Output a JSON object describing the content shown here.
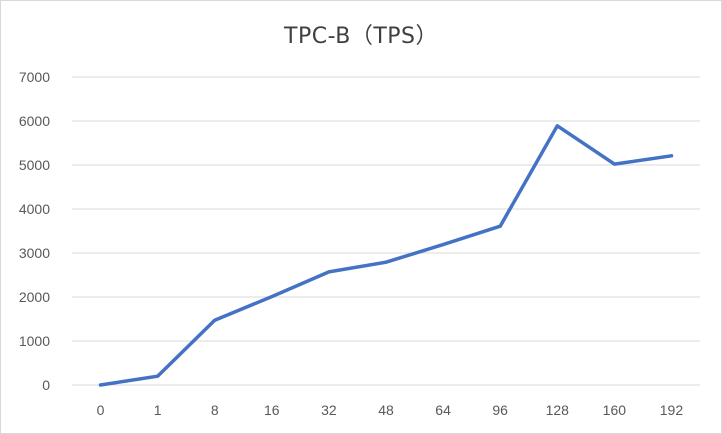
{
  "chart_data": {
    "type": "line",
    "title": "TPC-B（TPS）",
    "xlabel": "",
    "ylabel": "",
    "categories": [
      "0",
      "1",
      "8",
      "16",
      "32",
      "48",
      "64",
      "96",
      "128",
      "160",
      "192"
    ],
    "series": [
      {
        "values": [
          0,
          200,
          1470,
          2010,
          2570,
          2790,
          3190,
          3610,
          5890,
          5020,
          5210
        ],
        "color": "#4472c4"
      }
    ],
    "ylim": [
      0,
      7000
    ],
    "yticks": [
      0,
      1000,
      2000,
      3000,
      4000,
      5000,
      6000,
      7000
    ],
    "grid": true,
    "legend": "none",
    "gridline_color": "#d9d9d9"
  }
}
